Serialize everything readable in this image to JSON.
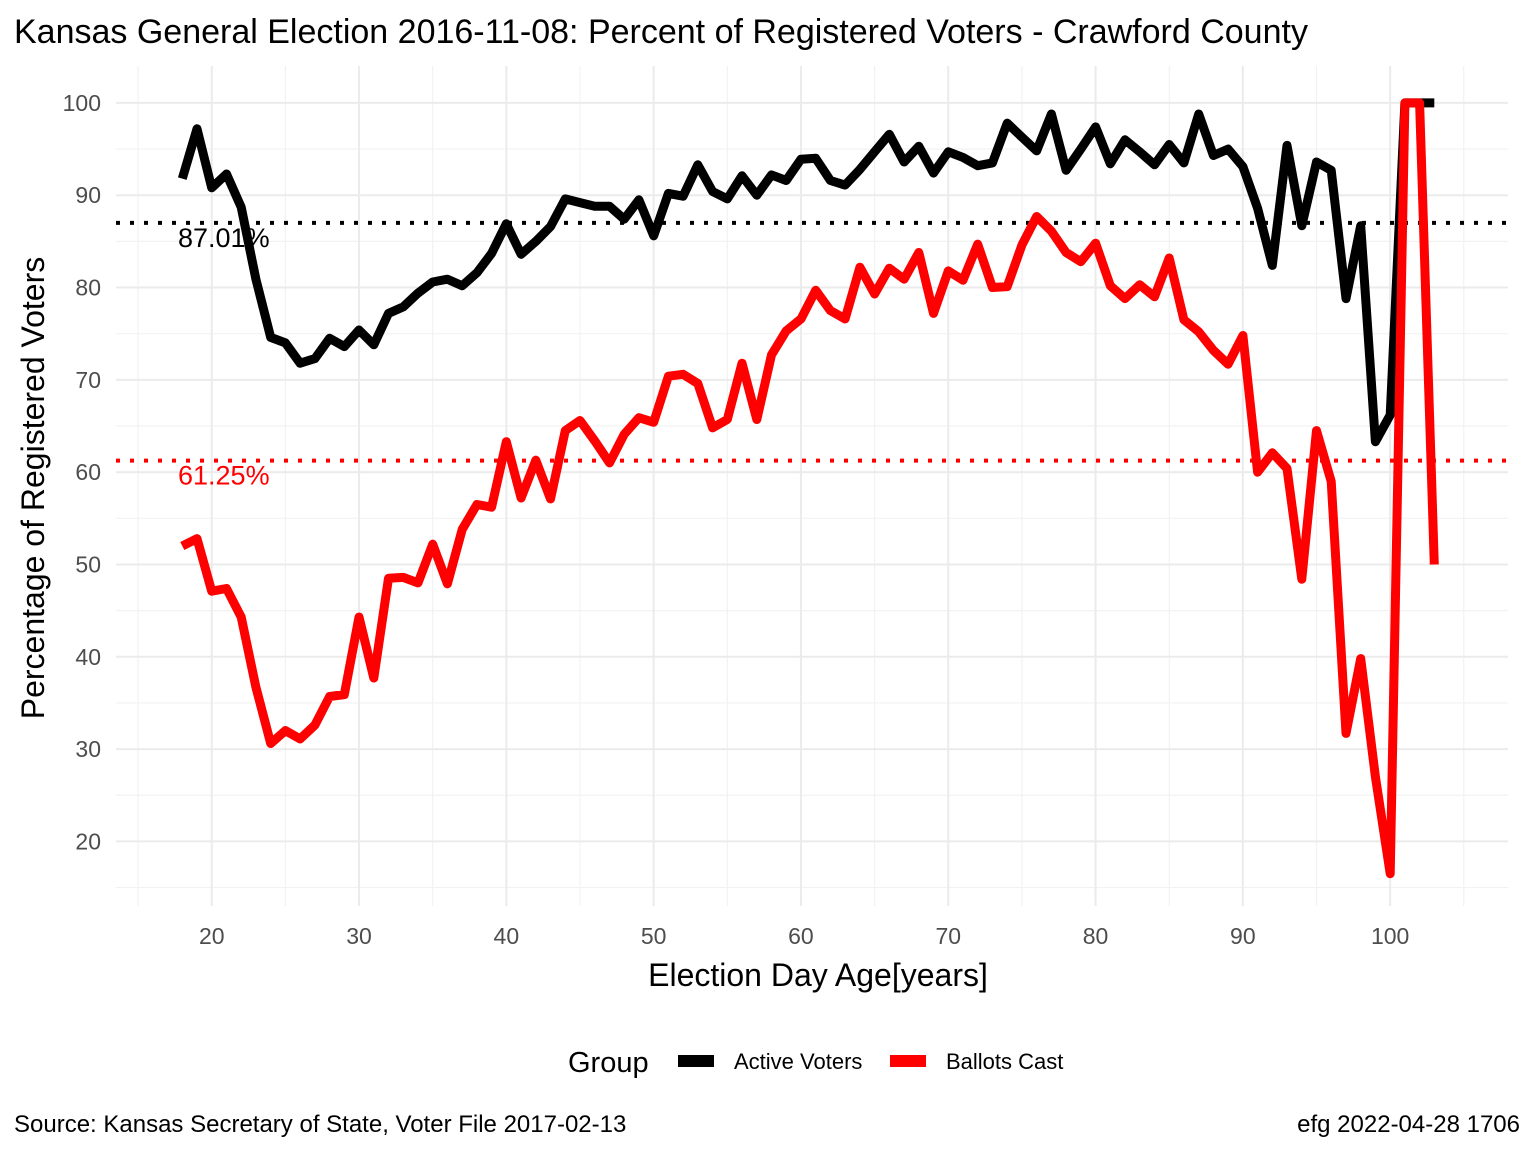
{
  "chart_data": {
    "type": "line",
    "title": "Kansas General Election 2016-11-08:  Percent of Registered Voters - Crawford County",
    "xlabel": "Election Day Age[years]",
    "ylabel": "Percentage of Registered Voters",
    "xlim": [
      13.5,
      108
    ],
    "ylim": [
      13,
      104
    ],
    "x_ticks": [
      20,
      30,
      40,
      50,
      60,
      70,
      80,
      90,
      100
    ],
    "y_ticks": [
      20,
      30,
      40,
      50,
      60,
      70,
      80,
      90,
      100
    ],
    "grid": true,
    "legend": {
      "title": "Group",
      "position": "bottom"
    },
    "series": [
      {
        "name": "Active Voters",
        "color": "#000000",
        "x": [
          18,
          19,
          20,
          21,
          22,
          23,
          24,
          25,
          26,
          27,
          28,
          29,
          30,
          31,
          32,
          33,
          34,
          35,
          36,
          37,
          38,
          39,
          40,
          41,
          42,
          43,
          44,
          45,
          46,
          47,
          48,
          49,
          50,
          51,
          52,
          53,
          54,
          55,
          56,
          57,
          58,
          59,
          60,
          61,
          62,
          63,
          64,
          65,
          66,
          67,
          68,
          69,
          70,
          71,
          72,
          73,
          74,
          75,
          76,
          77,
          78,
          79,
          80,
          81,
          82,
          83,
          84,
          85,
          86,
          87,
          88,
          89,
          90,
          91,
          92,
          93,
          94,
          95,
          96,
          97,
          98,
          99,
          100,
          101,
          102,
          103
        ],
        "values": [
          91.8,
          97.2,
          90.8,
          92.3,
          88.7,
          80.9,
          74.6,
          74.0,
          71.8,
          72.3,
          74.5,
          73.6,
          75.4,
          73.8,
          77.2,
          77.9,
          79.4,
          80.6,
          80.9,
          80.2,
          81.6,
          83.7,
          86.9,
          83.6,
          85.0,
          86.6,
          89.6,
          89.2,
          88.8,
          88.8,
          87.4,
          89.5,
          85.6,
          90.2,
          89.9,
          93.3,
          90.4,
          89.6,
          92.1,
          90.0,
          92.2,
          91.6,
          93.9,
          94.0,
          91.6,
          91.1,
          92.8,
          94.7,
          96.6,
          93.6,
          95.3,
          92.4,
          94.7,
          94.1,
          93.2,
          93.5,
          97.8,
          96.3,
          94.8,
          98.8,
          92.7,
          95.0,
          97.4,
          93.4,
          96.0,
          94.7,
          93.3,
          95.5,
          93.5,
          98.8,
          94.3,
          95.0,
          93.1,
          88.6,
          82.4,
          95.4,
          86.7,
          93.6,
          92.7,
          78.8,
          86.7,
          63.3,
          66.2,
          100.0,
          100.0,
          100.0
        ]
      },
      {
        "name": "Ballots Cast",
        "color": "#ff0000",
        "x": [
          18,
          19,
          20,
          21,
          22,
          23,
          24,
          25,
          26,
          27,
          28,
          29,
          30,
          31,
          32,
          33,
          34,
          35,
          36,
          37,
          38,
          39,
          40,
          41,
          42,
          43,
          44,
          45,
          46,
          47,
          48,
          49,
          50,
          51,
          52,
          53,
          54,
          55,
          56,
          57,
          58,
          59,
          60,
          61,
          62,
          63,
          64,
          65,
          66,
          67,
          68,
          69,
          70,
          71,
          72,
          73,
          74,
          75,
          76,
          77,
          78,
          79,
          80,
          81,
          82,
          83,
          84,
          85,
          86,
          87,
          88,
          89,
          90,
          91,
          92,
          93,
          94,
          95,
          96,
          97,
          98,
          99,
          100,
          101,
          102,
          103
        ],
        "values": [
          52.0,
          52.8,
          47.1,
          47.4,
          44.3,
          36.7,
          30.6,
          32.0,
          31.1,
          32.6,
          35.7,
          35.9,
          44.3,
          37.7,
          48.5,
          48.6,
          48.0,
          52.2,
          47.9,
          53.8,
          56.5,
          56.2,
          63.3,
          57.2,
          61.3,
          57.1,
          64.5,
          65.6,
          63.4,
          61.0,
          64.1,
          65.9,
          65.4,
          70.4,
          70.6,
          69.6,
          64.8,
          65.7,
          71.8,
          65.7,
          72.7,
          75.3,
          76.6,
          79.7,
          77.5,
          76.6,
          82.2,
          79.3,
          82.1,
          80.9,
          83.8,
          77.2,
          81.8,
          80.8,
          84.7,
          80.0,
          80.1,
          84.6,
          87.7,
          86.1,
          83.8,
          82.8,
          84.8,
          80.2,
          78.8,
          80.3,
          79.0,
          83.2,
          76.5,
          75.2,
          73.2,
          71.7,
          74.8,
          60.0,
          62.1,
          60.4,
          48.4,
          64.5,
          59.0,
          31.7,
          39.8,
          27.0,
          16.5,
          100.0,
          100.0,
          50.0
        ]
      }
    ],
    "reference_lines": [
      {
        "series": "Active Voters",
        "value": 87.01,
        "label": "87.01%",
        "color": "#000000"
      },
      {
        "series": "Ballots Cast",
        "value": 61.25,
        "label": "61.25%",
        "color": "#ff0000"
      }
    ]
  },
  "caption_left": "Source:  Kansas Secretary of State, Voter File  2017-02-13",
  "caption_right": "efg 2022-04-28 1706"
}
